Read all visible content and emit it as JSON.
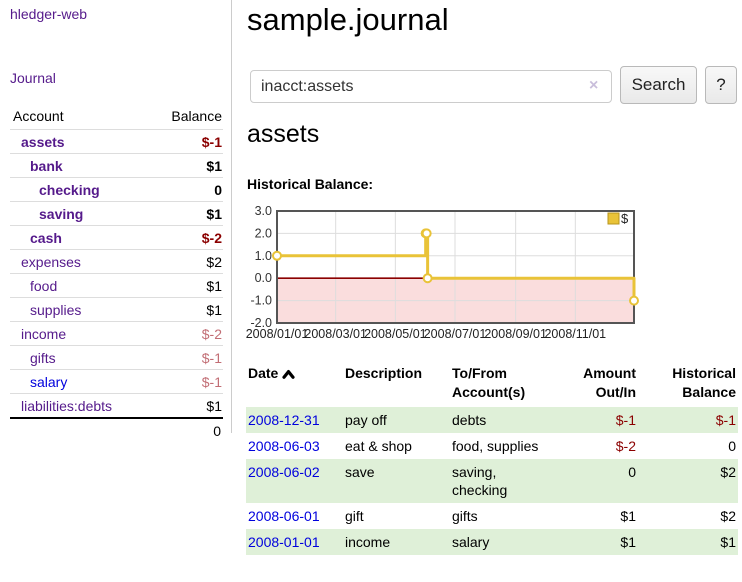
{
  "sidebar": {
    "brand": "hledger-web",
    "nav_journal": "Journal",
    "columns": {
      "account": "Account",
      "balance": "Balance"
    },
    "accounts": [
      {
        "name": "assets",
        "balance": "$-1",
        "level": 1,
        "bold": true,
        "balance_style": "negative"
      },
      {
        "name": "bank",
        "balance": "$1",
        "level": 2,
        "bold": true,
        "balance_style": "normal"
      },
      {
        "name": "checking",
        "balance": "0",
        "level": 3,
        "bold": true,
        "balance_style": "normal"
      },
      {
        "name": "saving",
        "balance": "$1",
        "level": 3,
        "bold": true,
        "balance_style": "normal"
      },
      {
        "name": "cash",
        "balance": "$-2",
        "level": 2,
        "bold": true,
        "balance_style": "negative"
      },
      {
        "name": "expenses",
        "balance": "$2",
        "level": 1,
        "bold": false,
        "balance_style": "normal"
      },
      {
        "name": "food",
        "balance": "$1",
        "level": 2,
        "bold": false,
        "balance_style": "normal"
      },
      {
        "name": "supplies",
        "balance": "$1",
        "level": 2,
        "bold": false,
        "balance_style": "normal"
      },
      {
        "name": "income",
        "balance": "$-2",
        "level": 1,
        "bold": false,
        "balance_style": "negative-soft"
      },
      {
        "name": "gifts",
        "balance": "$-1",
        "level": 2,
        "bold": false,
        "balance_style": "negative-soft"
      },
      {
        "name": "salary",
        "balance": "$-1",
        "level": 2,
        "bold": false,
        "balance_style": "negative-soft",
        "link_style": "blue"
      },
      {
        "name": "liabilities:debts",
        "balance": "$1",
        "level": 1,
        "bold": false,
        "balance_style": "normal"
      }
    ],
    "total": "0"
  },
  "header": {
    "title": "sample.journal"
  },
  "search": {
    "value": "inacct:assets",
    "clear_icon": "×",
    "button": "Search",
    "help_button": "?"
  },
  "account_page": {
    "heading": "assets",
    "chart_title": "Historical Balance:"
  },
  "chart_data": {
    "type": "line",
    "step": true,
    "title": "Historical Balance:",
    "legend": [
      "$"
    ],
    "legend_position": "top-right",
    "points": [
      [
        "2008-01-01",
        1
      ],
      [
        "2008-06-01",
        2
      ],
      [
        "2008-06-02",
        2
      ],
      [
        "2008-06-03",
        0
      ],
      [
        "2008-12-31",
        -1
      ]
    ],
    "ylim": [
      -2,
      3
    ],
    "y_ticks": [
      "3.0",
      "2.0",
      "1.0",
      "0.0",
      "-1.0",
      "-2.0"
    ],
    "y_tick_values": [
      3,
      2,
      1,
      0,
      -1,
      -2
    ],
    "x_ticks": [
      "2008/01/01",
      "2008/03/01",
      "2008/05/01",
      "2008/07/01",
      "2008/09/01",
      "2008/11/01"
    ],
    "x_tick_dates": [
      "2008-01-01",
      "2008-03-01",
      "2008-05-01",
      "2008-07-01",
      "2008-09-01",
      "2008-11-01"
    ],
    "grid": true,
    "negative_region_shaded": true
  },
  "register": {
    "columns": [
      "Date",
      "Description",
      "To/From Account(s)",
      "Amount Out/In",
      "Historical Balance"
    ],
    "sort_icon": "caret-up",
    "rows": [
      {
        "date": "2008-12-31",
        "description": "pay off",
        "accounts": "debts",
        "amount": "$-1",
        "amount_negative": true,
        "balance": "$-1",
        "balance_negative": true
      },
      {
        "date": "2008-06-03",
        "description": "eat & shop",
        "accounts": "food, supplies",
        "amount": "$-2",
        "amount_negative": true,
        "balance": "0",
        "balance_negative": false
      },
      {
        "date": "2008-06-02",
        "description": "save",
        "accounts": "saving, checking",
        "amount": "0",
        "amount_negative": false,
        "balance": "$2",
        "balance_negative": false
      },
      {
        "date": "2008-06-01",
        "description": "gift",
        "accounts": "gifts",
        "amount": "$1",
        "amount_negative": false,
        "balance": "$2",
        "balance_negative": false
      },
      {
        "date": "2008-01-01",
        "description": "income",
        "accounts": "salary",
        "amount": "$1",
        "amount_negative": false,
        "balance": "$1",
        "balance_negative": false
      }
    ]
  },
  "colors": {
    "link_purple": "#551a8b",
    "link_blue": "#0000dd",
    "negative": "#8b0000",
    "negative_soft": "#c26e75",
    "stripe_green": "#dff0d8",
    "chart_line": "#e9c338",
    "chart_region": "#fadddd",
    "chart_zero": "#8b0000"
  }
}
